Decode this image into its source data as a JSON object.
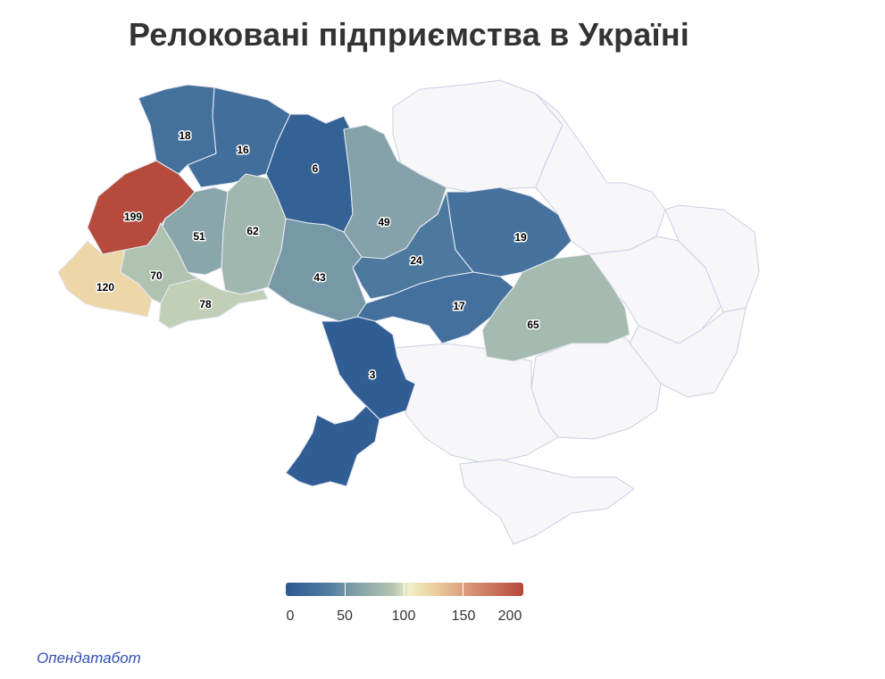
{
  "title": "Релоковані підприємства в Україні",
  "source": "Опендатабот",
  "legend": {
    "ticks": [
      "0",
      "50",
      "100",
      "150",
      "200"
    ],
    "min": 0,
    "max": 200,
    "colors": {
      "low": "#2c5a92",
      "mid": "#f2efc9",
      "high": "#b5483b"
    }
  },
  "regions": [
    {
      "id": "volyn",
      "value": 18,
      "label": "18"
    },
    {
      "id": "rivne",
      "value": 16,
      "label": "16"
    },
    {
      "id": "zhytomyr",
      "value": 6,
      "label": "6"
    },
    {
      "id": "kyiv",
      "value": 49,
      "label": "49"
    },
    {
      "id": "poltava",
      "value": 19,
      "label": "19"
    },
    {
      "id": "lviv",
      "value": 199,
      "label": "199"
    },
    {
      "id": "ternopil",
      "value": 51,
      "label": "51"
    },
    {
      "id": "khmelnytskyi",
      "value": 62,
      "label": "62"
    },
    {
      "id": "vinnytsia",
      "value": 43,
      "label": "43"
    },
    {
      "id": "cherkasy",
      "value": 24,
      "label": "24"
    },
    {
      "id": "zakarpattia",
      "value": 120,
      "label": "120"
    },
    {
      "id": "ivano-frankivsk",
      "value": 70,
      "label": "70"
    },
    {
      "id": "chernivtsi",
      "value": 78,
      "label": "78"
    },
    {
      "id": "kirovohrad",
      "value": 17,
      "label": "17"
    },
    {
      "id": "dnipropetrovsk",
      "value": 65,
      "label": "65"
    },
    {
      "id": "mykolaiv",
      "value": 3,
      "label": "3"
    },
    {
      "id": "odesa",
      "value": 3,
      "label": ""
    }
  ]
}
